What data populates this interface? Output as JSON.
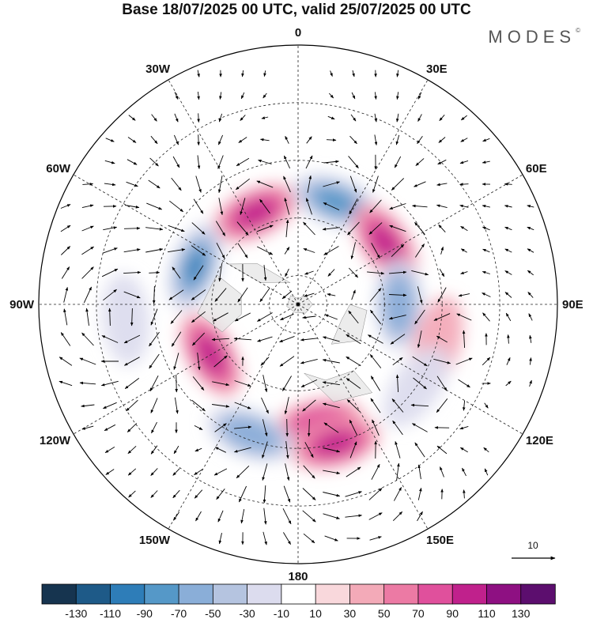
{
  "title": "Base 18/07/2025 00 UTC, valid 25/07/2025 00 UTC",
  "brand": "MODES",
  "brand_mark": "©",
  "map": {
    "projection": "polar-stereographic",
    "pole": "north",
    "field": "wind speed anomaly with wind vectors",
    "longitude_labels": [
      {
        "label": "0",
        "lon": 0
      },
      {
        "label": "30E",
        "lon": 30
      },
      {
        "label": "60E",
        "lon": 60
      },
      {
        "label": "90E",
        "lon": 90
      },
      {
        "label": "120E",
        "lon": 120
      },
      {
        "label": "150E",
        "lon": 150
      },
      {
        "label": "180",
        "lon": 180
      },
      {
        "label": "150W",
        "lon": -150
      },
      {
        "label": "120W",
        "lon": -120
      },
      {
        "label": "90W",
        "lon": -90
      },
      {
        "label": "60W",
        "lon": -60
      },
      {
        "label": "30W",
        "lon": -30
      }
    ],
    "anomaly_centers": [
      {
        "sign": "positive",
        "lon": -25,
        "lat": 55,
        "level": 90
      },
      {
        "sign": "negative",
        "lon": 20,
        "lat": 52,
        "level": -90
      },
      {
        "sign": "positive",
        "lon": 55,
        "lat": 53,
        "level": 90
      },
      {
        "sign": "negative",
        "lon": 90,
        "lat": 55,
        "level": -70
      },
      {
        "sign": "positive",
        "lon": 105,
        "lat": 40,
        "level": 30
      },
      {
        "sign": "negative",
        "lon": 125,
        "lat": 40,
        "level": -30
      },
      {
        "sign": "positive",
        "lon": 170,
        "lat": 48,
        "level": 70
      },
      {
        "sign": "positive",
        "lon": 165,
        "lat": 40,
        "level": 90
      },
      {
        "sign": "negative",
        "lon": -160,
        "lat": 42,
        "level": -70
      },
      {
        "sign": "positive",
        "lon": -120,
        "lat": 55,
        "level": 90
      },
      {
        "sign": "negative",
        "lon": -70,
        "lat": 52,
        "level": -110
      },
      {
        "sign": "negative",
        "lon": -95,
        "lat": 30,
        "level": -30
      }
    ],
    "reference_vector_label": "10"
  },
  "colorbar": {
    "tick_labels": [
      "-130",
      "-110",
      "-90",
      "-70",
      "-50",
      "-30",
      "-10",
      "10",
      "30",
      "50",
      "70",
      "90",
      "110",
      "130"
    ],
    "colors": [
      "#16344f",
      "#1e5a88",
      "#2e7db8",
      "#5598c8",
      "#8aaed8",
      "#b5c4e0",
      "#dcdcee",
      "#ffffff",
      "#f9d8dc",
      "#f3aab8",
      "#ec7aa4",
      "#e0509c",
      "#c0218c",
      "#8e1082",
      "#5c0e6e"
    ]
  }
}
